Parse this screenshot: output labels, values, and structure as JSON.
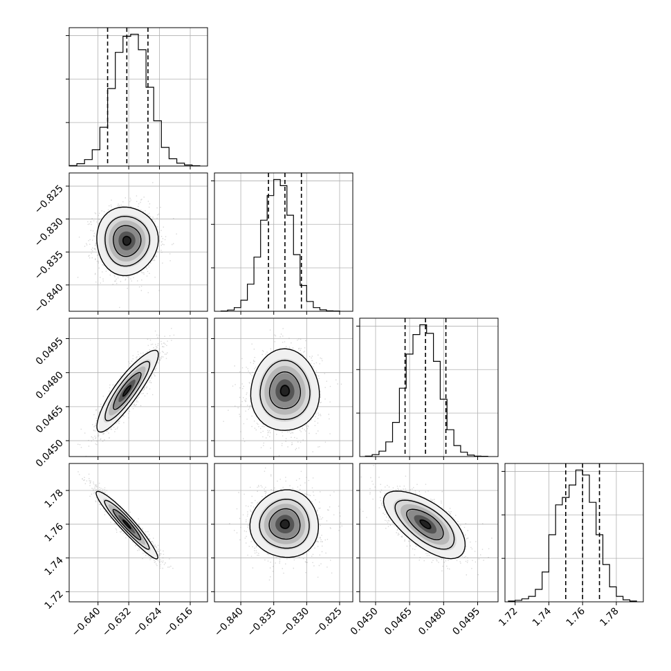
{
  "chart_data": {
    "type": "corner",
    "grid": true,
    "parameters": [
      {
        "index": 0,
        "range": [
          -0.6475,
          -0.6115
        ],
        "ticks": [
          -0.64,
          -0.632,
          -0.624,
          -0.616
        ],
        "tick_labels": [
          "−0.640",
          "−0.632",
          "−0.624",
          "−0.616"
        ],
        "quantiles": [
          -0.6375,
          -0.6325,
          -0.627
        ]
      },
      {
        "index": 1,
        "range": [
          -0.844,
          -0.823
        ],
        "ticks": [
          -0.84,
          -0.835,
          -0.83,
          -0.825
        ],
        "tick_labels": [
          "−0.840",
          "−0.835",
          "−0.830",
          "−0.825"
        ],
        "quantiles": [
          -0.8358,
          -0.8333,
          -0.8308
        ]
      },
      {
        "index": 2,
        "range": [
          0.0443,
          0.0504
        ],
        "ticks": [
          0.045,
          0.0465,
          0.048,
          0.0495
        ],
        "tick_labels": [
          "0.0450",
          "0.0465",
          "0.0480",
          "0.0495"
        ],
        "quantiles": [
          0.0463,
          0.0472,
          0.0481
        ]
      },
      {
        "index": 3,
        "range": [
          1.714,
          1.796
        ],
        "ticks": [
          1.72,
          1.74,
          1.76,
          1.78
        ],
        "tick_labels": [
          "1.72",
          "1.74",
          "1.76",
          "1.78"
        ],
        "quantiles": [
          1.75,
          1.76,
          1.77
        ]
      }
    ],
    "histograms": [
      {
        "bins": [
          -0.6465,
          -0.6445,
          -0.6425,
          -0.6405,
          -0.6385,
          -0.6365,
          -0.6345,
          -0.6325,
          -0.6305,
          -0.6285,
          -0.6265,
          -0.6245,
          -0.6225,
          -0.6205,
          -0.6185,
          -0.6165,
          -0.6145
        ],
        "counts": [
          2,
          9,
          25,
          63,
          150,
          300,
          440,
          502,
          510,
          450,
          305,
          175,
          72,
          28,
          11,
          4,
          1
        ]
      },
      {
        "bins": [
          -0.8425,
          -0.8415,
          -0.8405,
          -0.8395,
          -0.8385,
          -0.8375,
          -0.8365,
          -0.8355,
          -0.8345,
          -0.8335,
          -0.8325,
          -0.8315,
          -0.8305,
          -0.8295,
          -0.8285,
          -0.8275,
          -0.8265,
          -0.8255
        ],
        "counts": [
          1,
          5,
          15,
          45,
          110,
          220,
          370,
          470,
          535,
          510,
          390,
          230,
          105,
          40,
          15,
          6,
          2,
          1
        ]
      },
      {
        "bins": [
          0.0447,
          0.045,
          0.0453,
          0.0456,
          0.0459,
          0.0462,
          0.0465,
          0.0468,
          0.0471,
          0.0474,
          0.0477,
          0.048,
          0.0483,
          0.0486,
          0.0489,
          0.0492,
          0.0495,
          0.0498
        ],
        "counts": [
          2,
          8,
          22,
          60,
          140,
          280,
          420,
          500,
          540,
          505,
          390,
          235,
          110,
          45,
          18,
          6,
          2,
          1
        ]
      },
      {
        "bins": [
          1.718,
          1.722,
          1.726,
          1.73,
          1.734,
          1.738,
          1.742,
          1.746,
          1.75,
          1.754,
          1.758,
          1.762,
          1.766,
          1.77,
          1.774,
          1.778,
          1.782,
          1.786,
          1.79
        ],
        "counts": [
          3,
          6,
          12,
          22,
          50,
          120,
          270,
          390,
          420,
          470,
          530,
          510,
          400,
          270,
          150,
          60,
          22,
          8,
          3
        ]
      }
    ],
    "joint": [
      {
        "x": 0,
        "y": 1,
        "mean": [
          -0.6325,
          -0.8333
        ],
        "sd": [
          0.004,
          0.0026
        ],
        "corr": 0.0
      },
      {
        "x": 0,
        "y": 2,
        "mean": [
          -0.6325,
          0.0472
        ],
        "sd": [
          0.004,
          0.0009
        ],
        "corr": 0.88
      },
      {
        "x": 1,
        "y": 2,
        "mean": [
          -0.8333,
          0.0472
        ],
        "sd": [
          0.0026,
          0.0009
        ],
        "corr": 0.0
      },
      {
        "x": 0,
        "y": 3,
        "mean": [
          -0.6325,
          1.76
        ],
        "sd": [
          0.004,
          0.01
        ],
        "corr": -0.95
      },
      {
        "x": 1,
        "y": 3,
        "mean": [
          -0.8333,
          1.76
        ],
        "sd": [
          0.0026,
          0.01
        ],
        "corr": 0.0
      },
      {
        "x": 2,
        "y": 3,
        "mean": [
          0.0472,
          1.76
        ],
        "sd": [
          0.0009,
          0.01
        ],
        "corr": -0.65
      }
    ],
    "contour_levels_sigma": [
      0.5,
      1.0,
      1.5,
      2.0
    ]
  }
}
